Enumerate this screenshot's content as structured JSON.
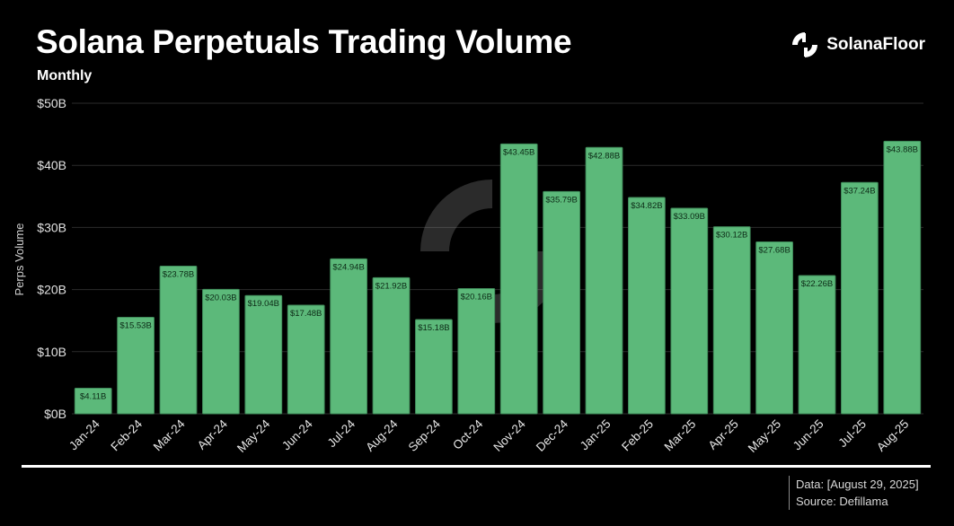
{
  "header": {
    "title": "Solana Perpetuals Trading Volume",
    "subtitle": "Monthly",
    "brand_name": "SolanaFloor",
    "brand_icon": "solanafloor-logo-icon"
  },
  "footer": {
    "date_line": "Data: [August 29, 2025]",
    "source_line": "Source: Defillama"
  },
  "colors": {
    "background": "#000000",
    "bar": "#5cb97a",
    "bar_stroke": "#3f8a59",
    "grid": "#2b2b2b",
    "text": "#ffffff"
  },
  "chart_data": {
    "type": "bar",
    "ylabel": "Perps Volume",
    "ylim": [
      0,
      50
    ],
    "yticks": [
      0,
      10,
      20,
      30,
      40,
      50
    ],
    "ytick_labels": [
      "$0B",
      "$10B",
      "$20B",
      "$30B",
      "$40B",
      "$50B"
    ],
    "grid": true,
    "categories": [
      "Jan-24",
      "Feb-24",
      "Mar-24",
      "Apr-24",
      "May-24",
      "Jun-24",
      "Jul-24",
      "Aug-24",
      "Sep-24",
      "Oct-24",
      "Nov-24",
      "Dec-24",
      "Jan-25",
      "Feb-25",
      "Mar-25",
      "Apr-25",
      "May-25",
      "Jun-25",
      "Jul-25",
      "Aug-25"
    ],
    "values": [
      4.11,
      15.53,
      23.78,
      20.03,
      19.04,
      17.48,
      24.94,
      21.92,
      15.18,
      20.16,
      43.45,
      35.79,
      42.88,
      34.82,
      33.09,
      30.12,
      27.68,
      22.26,
      37.24,
      43.88
    ],
    "data_labels": [
      "$4.11B",
      "$15.53B",
      "$23.78B",
      "$20.03B",
      "$19.04B",
      "$17.48B",
      "$24.94B",
      "$21.92B",
      "$15.18B",
      "$20.16B",
      "$43.45B",
      "$35.79B",
      "$42.88B",
      "$34.82B",
      "$33.09B",
      "$30.12B",
      "$27.68B",
      "$22.26B",
      "$37.24B",
      "$43.88B"
    ]
  }
}
